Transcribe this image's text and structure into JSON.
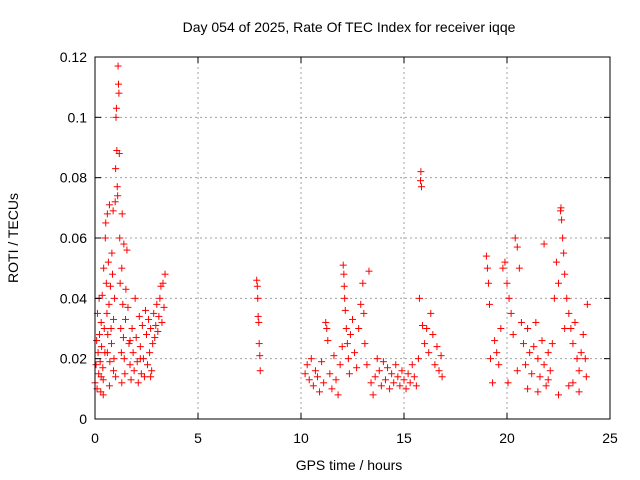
{
  "chart_data": {
    "type": "scatter",
    "title": "Day 054 of 2025, Rate Of TEC Index for receiver iqqe",
    "xlabel": "GPS time / hours",
    "ylabel": "ROTI / TECUs",
    "xlim": [
      0,
      25
    ],
    "ylim": [
      0,
      0.12
    ],
    "xticks": [
      0,
      5,
      10,
      15,
      20,
      25
    ],
    "xtick_labels": [
      "0",
      "5",
      "10",
      "15",
      "20",
      "25"
    ],
    "yticks": [
      0,
      0.02,
      0.04,
      0.06,
      0.08,
      0.1,
      0.12
    ],
    "ytick_labels": [
      "0",
      "0.02",
      "0.04",
      "0.06",
      "0.08",
      "0.1",
      "0.12"
    ],
    "grid": true,
    "marker": "plus",
    "color": "#ff0000",
    "series": [
      {
        "points": [
          [
            0.0,
            0.012
          ],
          [
            0.05,
            0.018
          ],
          [
            0.08,
            0.026
          ],
          [
            0.1,
            0.01
          ],
          [
            0.12,
            0.035
          ],
          [
            0.15,
            0.022
          ],
          [
            0.18,
            0.015
          ],
          [
            0.2,
            0.04
          ],
          [
            0.22,
            0.028
          ],
          [
            0.25,
            0.019
          ],
          [
            0.28,
            0.009
          ],
          [
            0.3,
            0.032
          ],
          [
            0.32,
            0.024
          ],
          [
            0.35,
            0.041
          ],
          [
            0.38,
            0.017
          ],
          [
            0.4,
            0.013
          ],
          [
            0.42,
            0.05
          ],
          [
            0.45,
            0.03
          ],
          [
            0.48,
            0.022
          ],
          [
            0.5,
            0.06
          ],
          [
            0.52,
            0.065
          ],
          [
            0.55,
            0.045
          ],
          [
            0.58,
            0.035
          ],
          [
            0.6,
            0.068
          ],
          [
            0.62,
            0.028
          ],
          [
            0.65,
            0.052
          ],
          [
            0.68,
            0.038
          ],
          [
            0.7,
            0.071
          ],
          [
            0.72,
            0.019
          ],
          [
            0.75,
            0.044
          ],
          [
            0.78,
            0.03
          ],
          [
            0.8,
            0.025
          ],
          [
            0.82,
            0.055
          ],
          [
            0.85,
            0.048
          ],
          [
            0.88,
            0.069
          ],
          [
            0.9,
            0.033
          ],
          [
            0.92,
            0.02
          ],
          [
            0.95,
            0.04
          ],
          [
            0.98,
            0.072
          ],
          [
            1.0,
            0.083
          ],
          [
            1.02,
            0.1
          ],
          [
            1.04,
            0.103
          ],
          [
            1.06,
            0.089
          ],
          [
            1.08,
            0.077
          ],
          [
            1.1,
            0.074
          ],
          [
            1.12,
            0.117
          ],
          [
            1.14,
            0.111
          ],
          [
            1.16,
            0.108
          ],
          [
            1.18,
            0.088
          ],
          [
            1.2,
            0.06
          ],
          [
            1.22,
            0.045
          ],
          [
            1.25,
            0.03
          ],
          [
            1.28,
            0.022
          ],
          [
            1.3,
            0.05
          ],
          [
            1.32,
            0.068
          ],
          [
            1.35,
            0.038
          ],
          [
            1.38,
            0.027
          ],
          [
            1.4,
            0.058
          ],
          [
            1.42,
            0.02
          ],
          [
            1.45,
            0.015
          ],
          [
            1.48,
            0.033
          ],
          [
            1.5,
            0.043
          ],
          [
            1.55,
            0.056
          ],
          [
            1.6,
            0.037
          ],
          [
            1.65,
            0.025
          ],
          [
            1.7,
            0.018
          ],
          [
            1.75,
            0.013
          ],
          [
            1.8,
            0.03
          ],
          [
            1.85,
            0.022
          ],
          [
            1.9,
            0.016
          ],
          [
            1.95,
            0.04
          ],
          [
            2.0,
            0.027
          ],
          [
            2.05,
            0.019
          ],
          [
            2.1,
            0.012
          ],
          [
            2.15,
            0.034
          ],
          [
            2.2,
            0.024
          ],
          [
            2.25,
            0.015
          ],
          [
            2.3,
            0.031
          ],
          [
            2.35,
            0.02
          ],
          [
            2.4,
            0.014
          ],
          [
            2.45,
            0.036
          ],
          [
            2.5,
            0.028
          ],
          [
            2.55,
            0.018
          ],
          [
            2.6,
            0.033
          ],
          [
            2.65,
            0.022
          ],
          [
            2.7,
            0.03
          ],
          [
            2.75,
            0.016
          ],
          [
            2.8,
            0.025
          ],
          [
            2.85,
            0.035
          ],
          [
            2.9,
            0.027
          ],
          [
            2.95,
            0.031
          ],
          [
            3.0,
            0.038
          ],
          [
            3.05,
            0.029
          ],
          [
            3.1,
            0.034
          ],
          [
            3.15,
            0.04
          ],
          [
            3.2,
            0.044
          ],
          [
            3.25,
            0.032
          ],
          [
            3.3,
            0.045
          ],
          [
            3.35,
            0.037
          ],
          [
            3.4,
            0.048
          ],
          [
            0.3,
            0.014
          ],
          [
            0.6,
            0.022
          ],
          [
            0.9,
            0.016
          ],
          [
            1.3,
            0.012
          ],
          [
            1.7,
            0.026
          ],
          [
            2.2,
            0.02
          ],
          [
            2.7,
            0.014
          ],
          [
            0.4,
            0.008
          ],
          [
            0.7,
            0.011
          ],
          [
            1.0,
            0.014
          ],
          [
            7.85,
            0.046
          ],
          [
            7.88,
            0.044
          ],
          [
            7.9,
            0.04
          ],
          [
            7.92,
            0.034
          ],
          [
            7.95,
            0.032
          ],
          [
            7.97,
            0.025
          ],
          [
            8.0,
            0.021
          ],
          [
            8.02,
            0.016
          ],
          [
            10.2,
            0.015
          ],
          [
            10.3,
            0.018
          ],
          [
            10.4,
            0.013
          ],
          [
            10.5,
            0.02
          ],
          [
            10.6,
            0.011
          ],
          [
            10.7,
            0.016
          ],
          [
            10.8,
            0.014
          ],
          [
            10.9,
            0.009
          ],
          [
            11.0,
            0.019
          ],
          [
            11.1,
            0.012
          ],
          [
            11.2,
            0.032
          ],
          [
            11.25,
            0.03
          ],
          [
            11.3,
            0.026
          ],
          [
            11.4,
            0.015
          ],
          [
            11.5,
            0.01
          ],
          [
            11.6,
            0.021
          ],
          [
            11.7,
            0.013
          ],
          [
            11.8,
            0.008
          ],
          [
            11.9,
            0.018
          ],
          [
            12.0,
            0.024
          ],
          [
            12.05,
            0.051
          ],
          [
            12.08,
            0.048
          ],
          [
            12.1,
            0.044
          ],
          [
            12.12,
            0.04
          ],
          [
            12.15,
            0.036
          ],
          [
            12.2,
            0.03
          ],
          [
            12.25,
            0.025
          ],
          [
            12.3,
            0.02
          ],
          [
            12.35,
            0.015
          ],
          [
            12.4,
            0.028
          ],
          [
            12.5,
            0.033
          ],
          [
            12.6,
            0.022
          ],
          [
            12.7,
            0.017
          ],
          [
            12.8,
            0.03
          ],
          [
            12.9,
            0.038
          ],
          [
            13.0,
            0.045
          ],
          [
            13.05,
            0.035
          ],
          [
            13.1,
            0.025
          ],
          [
            13.2,
            0.018
          ],
          [
            13.3,
            0.049
          ],
          [
            13.4,
            0.012
          ],
          [
            13.5,
            0.008
          ],
          [
            13.6,
            0.014
          ],
          [
            13.7,
            0.02
          ],
          [
            13.8,
            0.016
          ],
          [
            13.9,
            0.011
          ],
          [
            14.0,
            0.019
          ],
          [
            14.1,
            0.013
          ],
          [
            14.2,
            0.017
          ],
          [
            14.3,
            0.01
          ],
          [
            14.4,
            0.015
          ],
          [
            14.5,
            0.012
          ],
          [
            14.6,
            0.018
          ],
          [
            14.7,
            0.014
          ],
          [
            14.8,
            0.011
          ],
          [
            14.9,
            0.016
          ],
          [
            15.0,
            0.013
          ],
          [
            15.1,
            0.01
          ],
          [
            15.2,
            0.015
          ],
          [
            15.3,
            0.012
          ],
          [
            15.4,
            0.018
          ],
          [
            15.5,
            0.014
          ],
          [
            15.6,
            0.011
          ],
          [
            15.7,
            0.02
          ],
          [
            15.75,
            0.04
          ],
          [
            15.8,
            0.079
          ],
          [
            15.82,
            0.082
          ],
          [
            15.85,
            0.077
          ],
          [
            15.9,
            0.031
          ],
          [
            16.0,
            0.025
          ],
          [
            16.1,
            0.03
          ],
          [
            16.2,
            0.022
          ],
          [
            16.3,
            0.035
          ],
          [
            16.4,
            0.028
          ],
          [
            16.5,
            0.018
          ],
          [
            16.6,
            0.024
          ],
          [
            16.7,
            0.016
          ],
          [
            16.8,
            0.021
          ],
          [
            16.85,
            0.014
          ],
          [
            19.0,
            0.054
          ],
          [
            19.05,
            0.05
          ],
          [
            19.1,
            0.045
          ],
          [
            19.15,
            0.038
          ],
          [
            19.2,
            0.02
          ],
          [
            19.3,
            0.012
          ],
          [
            19.4,
            0.026
          ],
          [
            19.5,
            0.022
          ],
          [
            19.6,
            0.018
          ],
          [
            19.7,
            0.03
          ],
          [
            19.8,
            0.05
          ],
          [
            19.9,
            0.052
          ],
          [
            20.0,
            0.045
          ],
          [
            20.1,
            0.04
          ],
          [
            20.2,
            0.035
          ],
          [
            20.3,
            0.028
          ],
          [
            20.4,
            0.06
          ],
          [
            20.5,
            0.057
          ],
          [
            20.6,
            0.05
          ],
          [
            20.7,
            0.032
          ],
          [
            20.8,
            0.025
          ],
          [
            20.9,
            0.018
          ],
          [
            21.0,
            0.03
          ],
          [
            21.1,
            0.022
          ],
          [
            21.2,
            0.015
          ],
          [
            21.3,
            0.024
          ],
          [
            21.4,
            0.032
          ],
          [
            21.5,
            0.02
          ],
          [
            21.6,
            0.014
          ],
          [
            21.7,
            0.026
          ],
          [
            21.8,
            0.018
          ],
          [
            21.9,
            0.011
          ],
          [
            22.0,
            0.022
          ],
          [
            22.1,
            0.016
          ],
          [
            22.2,
            0.025
          ],
          [
            22.3,
            0.04
          ],
          [
            22.4,
            0.052
          ],
          [
            22.5,
            0.045
          ],
          [
            22.6,
            0.069
          ],
          [
            22.62,
            0.07
          ],
          [
            22.65,
            0.066
          ],
          [
            22.7,
            0.06
          ],
          [
            22.75,
            0.055
          ],
          [
            22.8,
            0.048
          ],
          [
            22.9,
            0.04
          ],
          [
            23.0,
            0.035
          ],
          [
            23.1,
            0.03
          ],
          [
            23.2,
            0.025
          ],
          [
            23.3,
            0.032
          ],
          [
            23.4,
            0.02
          ],
          [
            23.5,
            0.016
          ],
          [
            23.6,
            0.022
          ],
          [
            23.7,
            0.028
          ],
          [
            23.8,
            0.02
          ],
          [
            23.9,
            0.038
          ],
          [
            20.05,
            0.012
          ],
          [
            20.5,
            0.016
          ],
          [
            21.0,
            0.01
          ],
          [
            21.5,
            0.009
          ],
          [
            22.0,
            0.013
          ],
          [
            22.5,
            0.008
          ],
          [
            23.0,
            0.011
          ],
          [
            23.5,
            0.009
          ],
          [
            21.8,
            0.058
          ],
          [
            22.8,
            0.03
          ],
          [
            23.2,
            0.012
          ],
          [
            23.85,
            0.014
          ]
        ]
      }
    ]
  }
}
